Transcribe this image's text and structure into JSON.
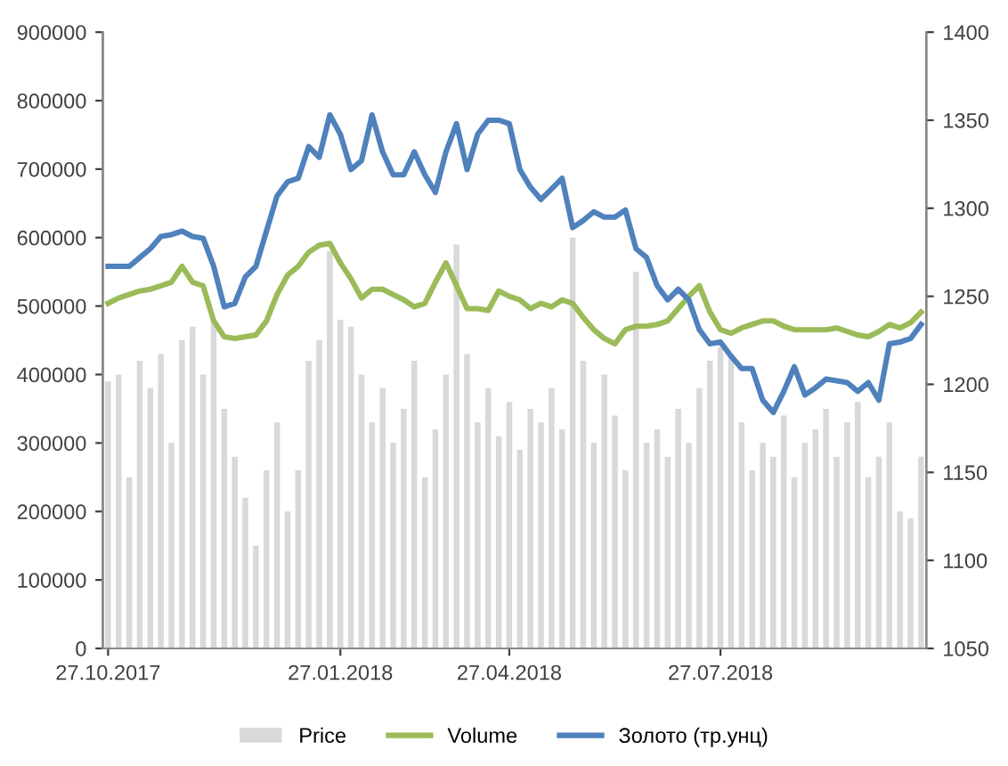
{
  "chart_data": {
    "type": "bar",
    "categories": [
      "27.10.2017",
      null,
      null,
      null,
      null,
      null,
      null,
      null,
      null,
      null,
      null,
      null,
      null,
      null,
      null,
      null,
      null,
      null,
      null,
      null,
      null,
      null,
      "27.01.2018",
      null,
      null,
      null,
      null,
      null,
      null,
      null,
      null,
      null,
      null,
      null,
      null,
      null,
      null,
      null,
      "27.04.2018",
      null,
      null,
      null,
      null,
      null,
      null,
      null,
      null,
      null,
      null,
      null,
      null,
      null,
      null,
      null,
      null,
      null,
      null,
      null,
      "27.07.2018",
      null,
      null,
      null,
      null,
      null,
      null,
      null,
      null,
      null,
      null,
      null,
      null,
      null,
      null,
      null,
      null,
      null,
      null,
      null
    ],
    "series": [
      {
        "name": "Price",
        "color": "#d9d9d9",
        "values": [
          390000,
          400000,
          250000,
          420000,
          380000,
          430000,
          300000,
          450000,
          470000,
          400000,
          480000,
          350000,
          280000,
          220000,
          150000,
          260000,
          330000,
          200000,
          260000,
          420000,
          450000,
          580000,
          480000,
          470000,
          400000,
          330000,
          380000,
          300000,
          350000,
          420000,
          250000,
          320000,
          400000,
          590000,
          430000,
          330000,
          380000,
          310000,
          360000,
          290000,
          350000,
          330000,
          380000,
          320000,
          600000,
          420000,
          300000,
          400000,
          340000,
          260000,
          550000,
          300000,
          320000,
          280000,
          350000,
          300000,
          380000,
          420000,
          440000,
          430000,
          330000,
          260000,
          300000,
          280000,
          340000,
          250000,
          300000,
          320000,
          350000,
          280000,
          330000,
          360000,
          250000,
          280000,
          330000,
          200000,
          190000,
          280000
        ]
      },
      {
        "name": "Volume",
        "type": "line",
        "axis": "y2",
        "color": "#9bbb59",
        "values": [
          1246,
          1249,
          1251,
          1253,
          1254,
          1256,
          1258,
          1267,
          1258,
          1256,
          1236,
          1227,
          1226,
          1227,
          1228,
          1236,
          1251,
          1262,
          1267,
          1275,
          1279,
          1280,
          1269,
          1260,
          1249,
          1254,
          1254,
          1251,
          1248,
          1244,
          1246,
          1258,
          1269,
          1256,
          1243,
          1243,
          1242,
          1253,
          1250,
          1248,
          1243,
          1246,
          1244,
          1248,
          1246,
          1238,
          1231,
          1226,
          1223,
          1231,
          1233,
          1233,
          1234,
          1236,
          1243,
          1250,
          1256,
          1241,
          1231,
          1229,
          1232,
          1234,
          1236,
          1236,
          1233,
          1231,
          1231,
          1231,
          1231,
          1232,
          1230,
          1228,
          1227,
          1230,
          1234,
          1232,
          1235,
          1241
        ]
      },
      {
        "name": "Золото (тр.унц)",
        "type": "line",
        "axis": "y2",
        "color": "#4f81bd",
        "values": [
          1267,
          1267,
          1267,
          1272,
          1277,
          1284,
          1285,
          1287,
          1284,
          1283,
          1267,
          1244,
          1246,
          1261,
          1267,
          1287,
          1307,
          1315,
          1317,
          1335,
          1329,
          1353,
          1342,
          1322,
          1327,
          1353,
          1332,
          1319,
          1319,
          1332,
          1319,
          1309,
          1332,
          1348,
          1322,
          1342,
          1350,
          1350,
          1348,
          1322,
          1312,
          1305,
          1311,
          1317,
          1289,
          1293,
          1298,
          1295,
          1295,
          1299,
          1277,
          1272,
          1256,
          1248,
          1254,
          1248,
          1231,
          1223,
          1224,
          1216,
          1209,
          1209,
          1191,
          1184,
          1196,
          1210,
          1194,
          1198,
          1203,
          1202,
          1201,
          1196,
          1201,
          1191,
          1223,
          1224,
          1226,
          1234
        ]
      }
    ],
    "ylim": [
      0,
      900000
    ],
    "yticks": [
      0,
      100000,
      200000,
      300000,
      400000,
      500000,
      600000,
      700000,
      800000,
      900000
    ],
    "y2lim": [
      1050,
      1400
    ],
    "y2ticks": [
      1050,
      1100,
      1150,
      1200,
      1250,
      1300,
      1350,
      1400
    ],
    "grid": false,
    "legend": "bottom"
  }
}
